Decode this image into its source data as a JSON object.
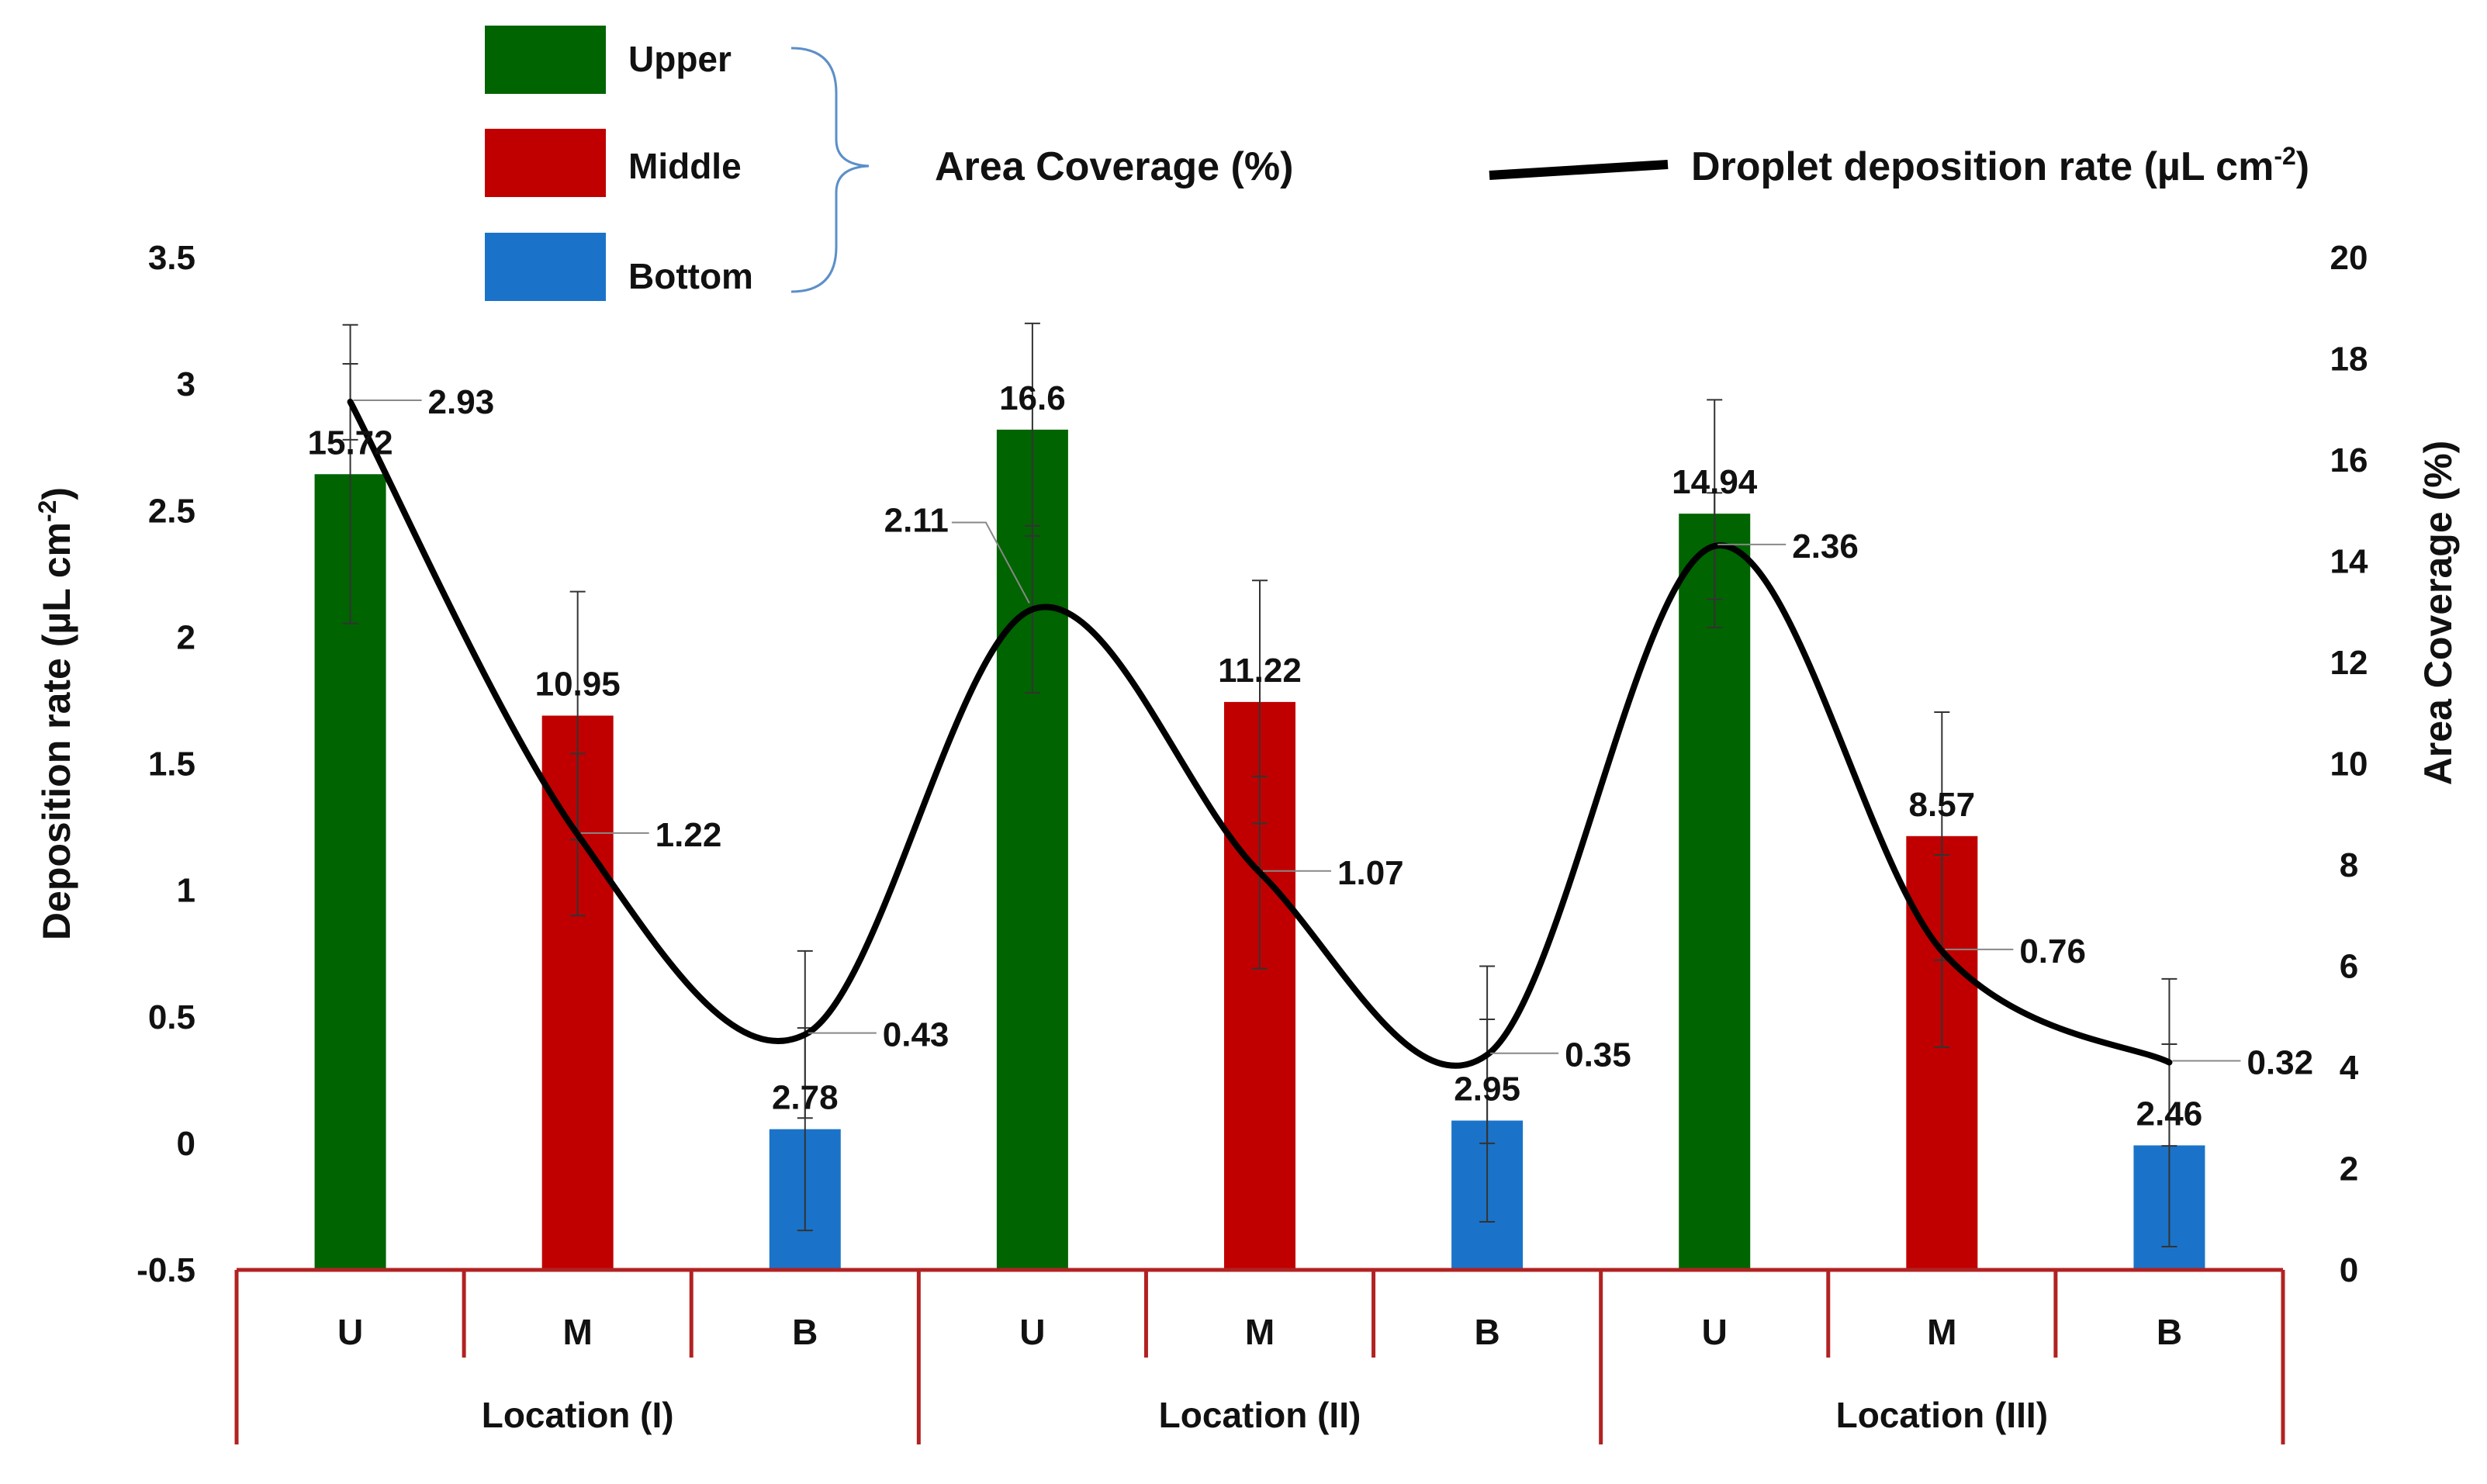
{
  "chart_data": {
    "type": "bar",
    "subtype": "bar-line-dual-axis",
    "categories": [
      "U",
      "M",
      "B",
      "U",
      "M",
      "B",
      "U",
      "M",
      "B"
    ],
    "groups": [
      {
        "label": "Location  (I)"
      },
      {
        "label": "Location (II)"
      },
      {
        "label": "Location  (III)"
      }
    ],
    "series": [
      {
        "name": "Area Coverage (%)",
        "kind": "bar",
        "axis": "right",
        "values": [
          15.72,
          10.95,
          2.78,
          16.6,
          11.22,
          2.95,
          14.94,
          8.57,
          2.46
        ],
        "labels": [
          "15.72",
          "10.95",
          "2.78",
          "16.6",
          "11.22",
          "2.95",
          "14.94",
          "8.57",
          "2.46"
        ],
        "errors": [
          2.95,
          2.45,
          2.0,
          2.1,
          2.4,
          2.0,
          2.25,
          2.45,
          2.0
        ],
        "bar_colors": [
          "#006400",
          "#c00000",
          "#1a73c8",
          "#006400",
          "#c00000",
          "#1a73c8",
          "#006400",
          "#c00000",
          "#1a73c8"
        ]
      },
      {
        "name": "Droplet deposition rate (µL cm-2)",
        "kind": "line",
        "axis": "left",
        "values": [
          2.93,
          1.22,
          0.43,
          2.11,
          1.07,
          0.35,
          2.36,
          0.76,
          0.32
        ],
        "labels": [
          "2.93",
          "1.22",
          "0.43",
          "2.11",
          "1.07",
          "0.35",
          "2.36",
          "0.76",
          "0.32"
        ],
        "errors": [
          0.15,
          0.32,
          0.33,
          0.33,
          0.38,
          0.35,
          0.21,
          0.38,
          0.33
        ],
        "color": "#000000"
      }
    ],
    "y_left": {
      "label": "Deposition rate (µL cm-2)",
      "ylim": [
        -0.5,
        3.5
      ],
      "ticks": [
        "-0.5",
        "0",
        "0.5",
        "1",
        "1.5",
        "2",
        "2.5",
        "3",
        "3.5"
      ]
    },
    "y_right": {
      "label": "Area Coverage (%)",
      "ylim": [
        0,
        20
      ],
      "ticks": [
        "0",
        "2",
        "4",
        "6",
        "8",
        "10",
        "12",
        "14",
        "16",
        "18",
        "20"
      ]
    },
    "legend": {
      "placement": "top",
      "bar_entries": [
        {
          "label": "Upper",
          "color": "#006400"
        },
        {
          "label": "Middle",
          "color": "#c00000"
        },
        {
          "label": "Bottom",
          "color": "#1a73c8"
        }
      ],
      "bar_group_label": "Area Coverage (%)",
      "line_entry": {
        "label": "Droplet deposition rate (µL cm",
        "superscript": "-2",
        "suffix": ")"
      }
    },
    "grid": false
  },
  "colors": {
    "axis_frame": "#b22222",
    "text": "#111111",
    "brace": "#5b8fc9"
  }
}
